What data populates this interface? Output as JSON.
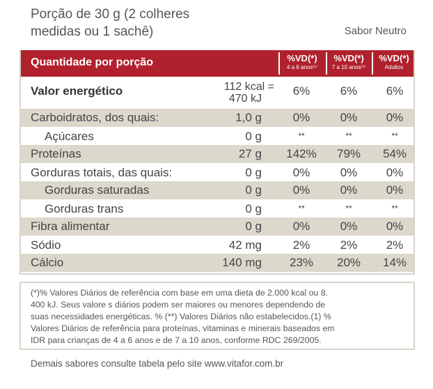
{
  "header": {
    "portion_line1": "Porção de 30 g (2 colheres",
    "portion_line2": "medidas ou 1 sachê)",
    "flavor": "Sabor Neutro"
  },
  "table": {
    "header_label": "Quantidade por porção",
    "vd_columns": [
      {
        "title": "%VD(*)",
        "subtitle": "4 a 6 anos⁽¹⁾"
      },
      {
        "title": "%VD(*)",
        "subtitle": "7 a 10 anos⁽¹⁾"
      },
      {
        "title": "%VD(*)",
        "subtitle": "Adultos"
      }
    ],
    "rows": [
      {
        "name": "Valor energético",
        "amount_line1": "112 kcal =",
        "amount_line2": "470 kJ",
        "vd1": "6%",
        "vd2": "6%",
        "vd3": "6%"
      },
      {
        "name": "Carboidratos, dos quais:",
        "amount": "1,0 g",
        "vd1": "0%",
        "vd2": "0%",
        "vd3": "0%"
      },
      {
        "name": "Açúcares",
        "amount": "0 g",
        "vd1": "**",
        "vd2": "**",
        "vd3": "**"
      },
      {
        "name": "Proteínas",
        "amount": "27 g",
        "vd1": "142%",
        "vd2": "79%",
        "vd3": "54%"
      },
      {
        "name": "Gorduras totais, das quais:",
        "amount": "0 g",
        "vd1": "0%",
        "vd2": "0%",
        "vd3": "0%"
      },
      {
        "name": "Gorduras saturadas",
        "amount": "0 g",
        "vd1": "0%",
        "vd2": "0%",
        "vd3": "0%"
      },
      {
        "name": "Gorduras trans",
        "amount": "0 g",
        "vd1": "**",
        "vd2": "**",
        "vd3": "**"
      },
      {
        "name": "Fibra alimentar",
        "amount": "0 g",
        "vd1": "0%",
        "vd2": "0%",
        "vd3": "0%"
      },
      {
        "name": "Sódio",
        "amount": "42 mg",
        "vd1": "2%",
        "vd2": "2%",
        "vd3": "2%"
      },
      {
        "name": "Cálcio",
        "amount": "140 mg",
        "vd1": "23%",
        "vd2": "20%",
        "vd3": "14%"
      }
    ]
  },
  "footnote": {
    "line1": "(*)% Valores Diários de referência com base em uma dieta de 2.000 kcal ou 8.",
    "line2": "400 kJ. Seus valore s diários podem ser maiores ou menores dependendo de",
    "line3": "suas necessidades energéticas. % (**) Valores Diários não estabelecidos.(1) %",
    "line4": "Valores Diários de referência para proteínas, vitaminas e minerais baseados em",
    "line5": "IDR para crianças de 4 a 6 anos e de 7 a 10 anos, conforme RDC 269/2005."
  },
  "bottom_note": "Demais sabores consulte tabela pelo site www.vitafor.com.br",
  "colors": {
    "header_red": "#b0212d",
    "row_shade": "#ddd8cc",
    "border": "#d9d4c9"
  }
}
